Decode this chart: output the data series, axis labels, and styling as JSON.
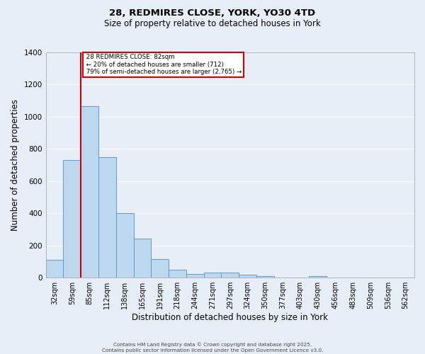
{
  "title_line1": "28, REDMIRES CLOSE, YORK, YO30 4TD",
  "title_line2": "Size of property relative to detached houses in York",
  "xlabel": "Distribution of detached houses by size in York",
  "ylabel": "Number of detached properties",
  "bar_labels": [
    "32sqm",
    "59sqm",
    "85sqm",
    "112sqm",
    "138sqm",
    "165sqm",
    "191sqm",
    "218sqm",
    "244sqm",
    "271sqm",
    "297sqm",
    "324sqm",
    "350sqm",
    "377sqm",
    "403sqm",
    "430sqm",
    "456sqm",
    "483sqm",
    "509sqm",
    "536sqm",
    "562sqm"
  ],
  "bar_values": [
    110,
    730,
    1065,
    750,
    400,
    245,
    115,
    50,
    25,
    30,
    30,
    20,
    10,
    0,
    0,
    10,
    0,
    0,
    0,
    0,
    0
  ],
  "bar_color": "#BDD7EE",
  "bar_edge_color": "#5B9BD5",
  "background_color": "#E8EEF7",
  "grid_color": "#ffffff",
  "property_label": "28 REDMIRES CLOSE: 82sqm",
  "pct_smaller": 20,
  "pct_smaller_count": 712,
  "pct_larger": 79,
  "pct_larger_count": 2765,
  "annotation_box_color": "#ffffff",
  "annotation_box_edge_color": "#cc0000",
  "vline_color": "#cc0000",
  "vline_x_index": 2,
  "ylim": [
    0,
    1400
  ],
  "yticks": [
    0,
    200,
    400,
    600,
    800,
    1000,
    1200,
    1400
  ],
  "footer_line1": "Contains HM Land Registry data © Crown copyright and database right 2025.",
  "footer_line2": "Contains public sector information licensed under the Open Government Licence v3.0."
}
